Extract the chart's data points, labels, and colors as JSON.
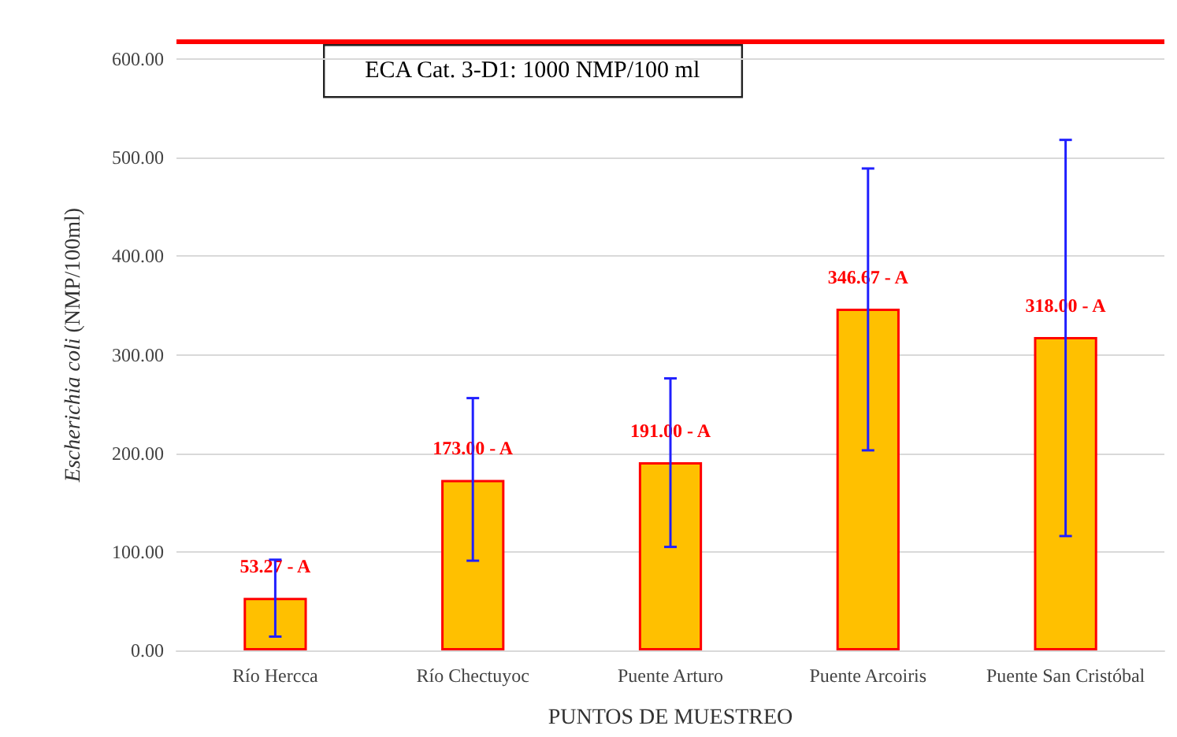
{
  "chart_data": {
    "type": "bar",
    "xlabel": "PUNTOS DE MUESTREO",
    "ylabel": "Escherichia coli (NMP/100ml)",
    "categories": [
      "Río Hercca",
      "Río Chectuyoc",
      "Puente Arturo",
      "Puente Arcoiris",
      "Puente San Cristóbal"
    ],
    "series": [
      {
        "color": "#ffc000",
        "values": [
          53.27,
          173.0,
          191.0,
          346.67,
          318.0
        ],
        "value_labels": [
          "53.27 - A",
          "173.00 - A",
          "191.00 - A",
          "346.67 - A",
          "318.00 - A"
        ],
        "errors": [
          [
            14,
            92
          ],
          [
            91,
            256
          ],
          [
            105,
            276
          ],
          [
            203,
            489
          ],
          [
            116,
            518
          ]
        ]
      }
    ],
    "ylim": [
      0,
      620
    ],
    "yticks": [
      {
        "value": 0,
        "label": "0.00"
      },
      {
        "value": 100,
        "label": "100.00"
      },
      {
        "value": 200,
        "label": "200.00"
      },
      {
        "value": 300,
        "label": "300.00"
      },
      {
        "value": 400,
        "label": "400.00"
      },
      {
        "value": 500,
        "label": "500.00"
      },
      {
        "value": 600,
        "label": "600.00"
      }
    ],
    "ref_lines": [
      {
        "axis": "y",
        "value": 618,
        "color": "#ff0000"
      }
    ],
    "annotations": [
      "ECA Cat. 3-D1: 1000 NMP/100 ml"
    ],
    "grid": "y"
  }
}
